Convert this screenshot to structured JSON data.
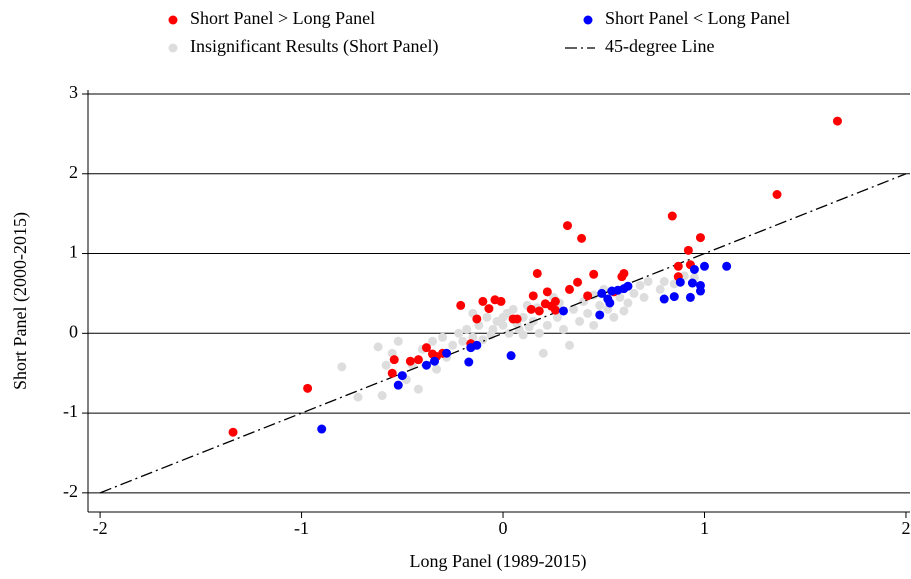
{
  "chart_data": {
    "type": "scatter",
    "x_label": "Long Panel (1989-2015)",
    "y_label": "Short Panel (2000-2015)",
    "xlim": [
      -2.06,
      2.02
    ],
    "ylim": [
      -2.24,
      3.05
    ],
    "xticks": [
      -2,
      -1,
      0,
      1,
      2
    ],
    "yticks": [
      -2,
      -1,
      0,
      1,
      2,
      3
    ],
    "grid": true,
    "legend": "top",
    "series": [
      {
        "name": "Short Panel > Long Panel",
        "color": "#ff0000",
        "kind": "points",
        "x": [
          -1.34,
          -0.97,
          -0.54,
          -0.55,
          -0.46,
          -0.42,
          -0.38,
          -0.35,
          -0.33,
          -0.3,
          -0.21,
          -0.16,
          -0.13,
          -0.1,
          -0.07,
          -0.04,
          -0.01,
          0.05,
          0.07,
          0.14,
          0.15,
          0.17,
          0.18,
          0.21,
          0.22,
          0.24,
          0.26,
          0.26,
          0.32,
          0.33,
          0.37,
          0.39,
          0.42,
          0.45,
          0.55,
          0.59,
          0.6,
          0.87,
          0.84,
          0.92,
          0.93,
          0.98,
          0.87,
          1.36,
          1.66
        ],
        "values": [
          -1.24,
          -0.69,
          -0.33,
          -0.5,
          -0.35,
          -0.33,
          -0.18,
          -0.26,
          -0.29,
          -0.25,
          0.35,
          -0.13,
          0.18,
          0.4,
          0.31,
          0.42,
          0.4,
          0.18,
          0.18,
          0.3,
          0.47,
          0.75,
          0.28,
          0.37,
          0.52,
          0.34,
          0.4,
          0.29,
          1.35,
          0.55,
          0.64,
          1.19,
          0.47,
          0.74,
          0.52,
          0.71,
          0.75,
          0.84,
          1.47,
          1.04,
          0.86,
          1.2,
          0.71,
          1.74,
          2.66
        ]
      },
      {
        "name": "Short Panel < Long Panel",
        "color": "#0000ff",
        "kind": "points",
        "x": [
          -0.9,
          -0.52,
          -0.5,
          -0.38,
          -0.34,
          -0.28,
          -0.17,
          -0.16,
          -0.13,
          0.04,
          0.3,
          0.48,
          0.49,
          0.52,
          0.54,
          0.57,
          0.6,
          0.62,
          0.53,
          0.85,
          0.93,
          0.94,
          0.98,
          0.98,
          1.0,
          0.95,
          1.11,
          0.8,
          0.88
        ],
        "values": [
          -1.2,
          -0.65,
          -0.53,
          -0.4,
          -0.35,
          -0.25,
          -0.36,
          -0.18,
          -0.15,
          -0.28,
          0.28,
          0.23,
          0.5,
          0.43,
          0.53,
          0.54,
          0.56,
          0.59,
          0.38,
          0.46,
          0.45,
          0.63,
          0.6,
          0.53,
          0.84,
          0.8,
          0.84,
          0.43,
          0.64
        ]
      },
      {
        "name": "Insignificant Results (Short Panel)",
        "color": "#dddddd",
        "kind": "points",
        "x": [
          -0.8,
          -0.72,
          -0.6,
          -0.62,
          -0.52,
          -0.48,
          -0.45,
          -0.42,
          -0.4,
          -0.35,
          -0.3,
          -0.28,
          -0.25,
          -0.22,
          -0.2,
          -0.18,
          -0.15,
          -0.12,
          -0.1,
          -0.08,
          -0.05,
          -0.03,
          0.0,
          0.02,
          0.03,
          0.05,
          0.07,
          0.08,
          0.1,
          0.12,
          0.13,
          0.15,
          0.18,
          0.2,
          0.22,
          0.25,
          0.27,
          0.3,
          0.33,
          0.35,
          0.38,
          0.4,
          0.42,
          0.45,
          0.48,
          0.5,
          0.52,
          0.55,
          0.58,
          0.6,
          0.62,
          0.65,
          0.68,
          0.7,
          0.72,
          0.78,
          0.8,
          0.85,
          0.9,
          0.95,
          -0.58,
          -0.55,
          -0.33,
          -0.15,
          0.0,
          0.1,
          0.28,
          0.45,
          0.17,
          -0.06
        ],
        "values": [
          -0.42,
          -0.8,
          -0.78,
          -0.17,
          -0.1,
          -0.58,
          -0.4,
          -0.7,
          -0.2,
          -0.1,
          -0.05,
          -0.3,
          -0.15,
          0.0,
          -0.1,
          0.05,
          -0.05,
          0.1,
          -0.08,
          0.2,
          0.05,
          0.15,
          0.1,
          0.25,
          0.0,
          0.3,
          0.12,
          0.05,
          0.2,
          0.35,
          0.08,
          0.15,
          0.0,
          -0.25,
          0.1,
          0.45,
          0.2,
          0.05,
          -0.15,
          0.3,
          0.15,
          0.4,
          0.25,
          0.1,
          0.35,
          0.55,
          0.3,
          0.2,
          0.45,
          0.28,
          0.38,
          0.5,
          0.6,
          0.45,
          0.65,
          0.55,
          0.65,
          0.62,
          0.72,
          0.7,
          -0.4,
          -0.25,
          -0.45,
          0.25,
          0.2,
          -0.02,
          0.38,
          0.48,
          0.32,
          -0.02
        ]
      },
      {
        "name": "45-degree Line",
        "color": "#000000",
        "kind": "line",
        "style": "dash-dot",
        "x": [
          -2,
          2
        ],
        "values": [
          -2,
          2
        ]
      }
    ]
  }
}
